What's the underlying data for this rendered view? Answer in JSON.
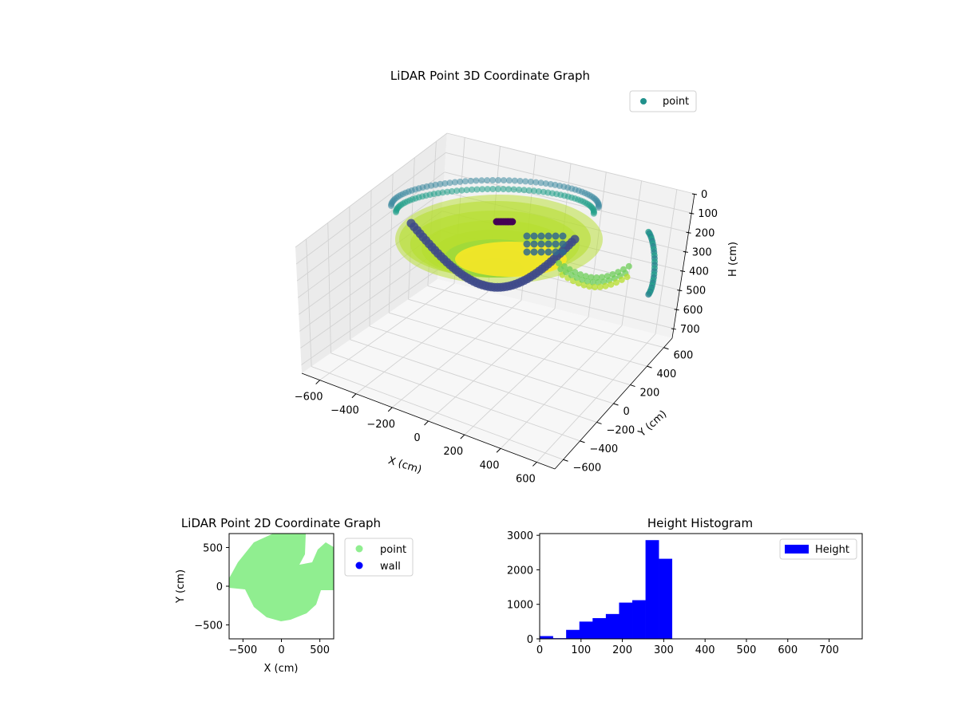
{
  "chart_data": [
    {
      "type": "scatter3d",
      "title": "LiDAR Point 3D Coordinate Graph",
      "xlabel": "X (cm)",
      "ylabel": "Y (cm)",
      "zlabel": "H (cm)",
      "xlim": [
        -700,
        700
      ],
      "ylim": [
        -700,
        700
      ],
      "zlim": [
        0,
        750
      ],
      "z_inverted": true,
      "x_ticks": [
        -600,
        -400,
        -200,
        0,
        200,
        400,
        600
      ],
      "y_ticks": [
        -600,
        -400,
        -200,
        0,
        200,
        400,
        600
      ],
      "z_ticks": [
        0,
        100,
        200,
        300,
        400,
        500,
        600,
        700
      ],
      "colormap": "viridis",
      "grid": true,
      "legend": {
        "placement": "top-right",
        "entries": [
          {
            "name": "point",
            "color": "#21918c"
          }
        ]
      }
    },
    {
      "type": "scatter",
      "title": "LiDAR Point 2D Coordinate Graph",
      "xlabel": "X (cm)",
      "ylabel": "Y (cm)",
      "xlim": [
        -680,
        680
      ],
      "ylim": [
        -680,
        680
      ],
      "x_ticks": [
        -500,
        0,
        500
      ],
      "y_ticks": [
        -500,
        0,
        500
      ],
      "legend": {
        "placement": "outside-right",
        "entries": [
          {
            "name": "point",
            "color": "#90ee90"
          },
          {
            "name": "wall",
            "color": "#0000ff"
          }
        ]
      }
    },
    {
      "type": "histogram",
      "title": "Height Histogram",
      "xlim": [
        0,
        780
      ],
      "ylim": [
        0,
        3050
      ],
      "x_ticks": [
        0,
        100,
        200,
        300,
        400,
        500,
        600,
        700
      ],
      "y_ticks": [
        0,
        1000,
        2000,
        3000
      ],
      "bin_width": 32,
      "bins": [
        {
          "start": 0,
          "count": 80
        },
        {
          "start": 32,
          "count": 20
        },
        {
          "start": 64,
          "count": 260
        },
        {
          "start": 96,
          "count": 500
        },
        {
          "start": 128,
          "count": 600
        },
        {
          "start": 160,
          "count": 720
        },
        {
          "start": 192,
          "count": 1050
        },
        {
          "start": 224,
          "count": 1120
        },
        {
          "start": 256,
          "count": 2860
        },
        {
          "start": 288,
          "count": 2320
        }
      ],
      "series": [
        {
          "name": "Height",
          "color": "#0000ff"
        }
      ],
      "legend": {
        "placement": "top-right"
      }
    }
  ]
}
